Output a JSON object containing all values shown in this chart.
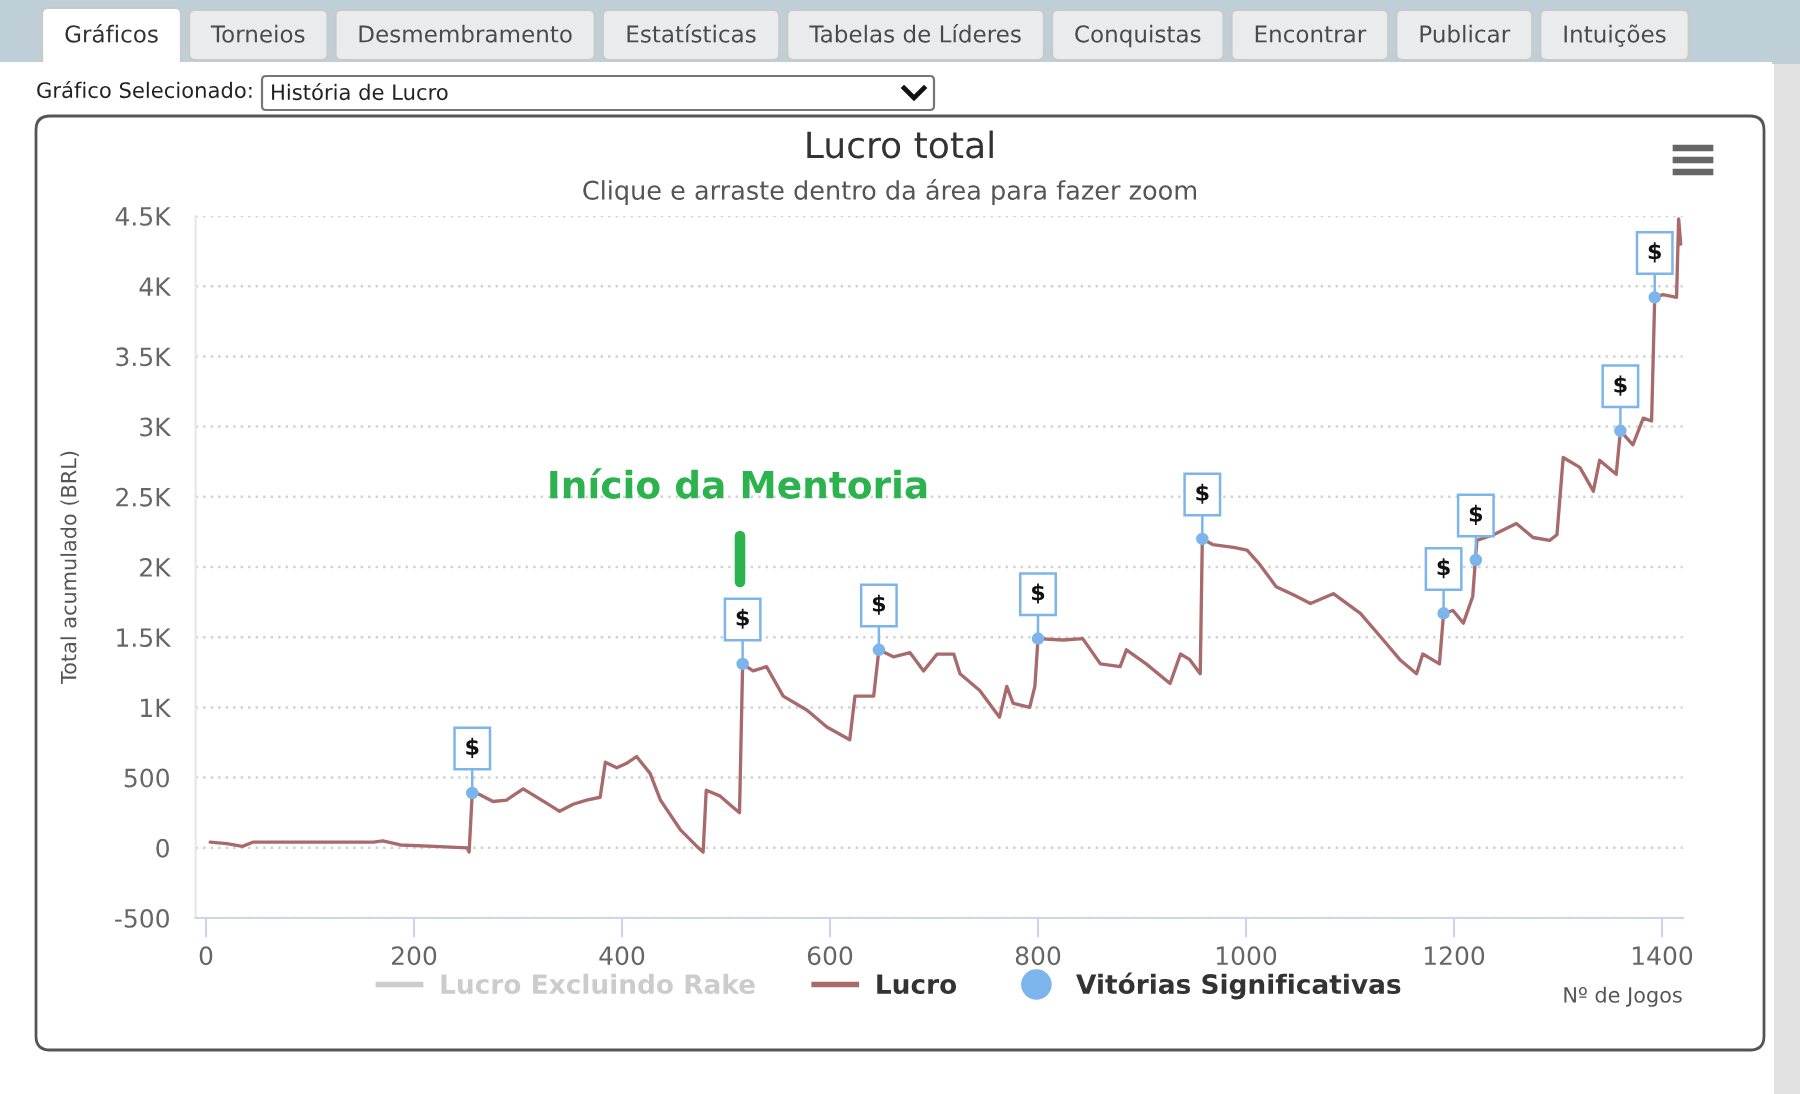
{
  "chart_data": {
    "type": "line",
    "title": "Lucro total",
    "subtitle": "Clique e arraste dentro da área para fazer zoom",
    "xlabel": "Nº de Jogos",
    "ylabel": "Total acumulado (BRL)",
    "xlim": [
      -10,
      1420
    ],
    "ylim": [
      -500,
      4500
    ],
    "xticks": [
      0,
      200,
      400,
      600,
      800,
      1000,
      1200,
      1400
    ],
    "yticks": [
      -500,
      0,
      500,
      {
        "value": 1000,
        "label": "1K"
      },
      {
        "value": 1500,
        "label": "1.5K"
      },
      {
        "value": 2000,
        "label": "2K"
      },
      {
        "value": 2500,
        "label": "2.5K"
      },
      {
        "value": 3000,
        "label": "3K"
      },
      {
        "value": 3500,
        "label": "3.5K"
      },
      {
        "value": 4000,
        "label": "4K"
      },
      {
        "value": 4500,
        "label": "4.5K"
      }
    ],
    "grid": "y",
    "legend": "bottom",
    "series": [
      {
        "name": "Lucro Excluindo Rake",
        "color": "#cccccc"
      },
      {
        "name": "Lucro",
        "color": "#a86a6a",
        "x": [
          4,
          20,
          35,
          45,
          100,
          161,
          170,
          187,
          220,
          251,
          253,
          256,
          263,
          276,
          289,
          305,
          327,
          340,
          353,
          366,
          379,
          384,
          395,
          404,
          414,
          427,
          437,
          456,
          472,
          478,
          481,
          494,
          505,
          513,
          516,
          526,
          539,
          555,
          578,
          597,
          619,
          624,
          642,
          647,
          661,
          677,
          690,
          703,
          719,
          725,
          744,
          763,
          770,
          776,
          792,
          797,
          800,
          824,
          843,
          860,
          879,
          885,
          904,
          927,
          937,
          946,
          956,
          958,
          968,
          988,
          1001,
          1013,
          1029,
          1046,
          1062,
          1084,
          1110,
          1132,
          1148,
          1164,
          1170,
          1186,
          1190,
          1199,
          1209,
          1218,
          1222,
          1238,
          1260,
          1276,
          1292,
          1299,
          1305,
          1321,
          1334,
          1340,
          1356,
          1360,
          1372,
          1382,
          1390,
          1393,
          1401,
          1414,
          1416,
          1418
        ],
        "values": [
          40,
          30,
          10,
          40,
          40,
          40,
          50,
          20,
          10,
          0,
          -30,
          390,
          380,
          330,
          340,
          420,
          320,
          260,
          310,
          340,
          360,
          610,
          570,
          600,
          650,
          530,
          340,
          130,
          10,
          -30,
          410,
          370,
          300,
          250,
          1310,
          1260,
          1290,
          1080,
          980,
          860,
          770,
          1080,
          1080,
          1410,
          1360,
          1390,
          1260,
          1380,
          1380,
          1240,
          1120,
          930,
          1150,
          1030,
          1000,
          1150,
          1490,
          1480,
          1490,
          1310,
          1290,
          1410,
          1310,
          1170,
          1380,
          1340,
          1240,
          2200,
          2160,
          2140,
          2120,
          2020,
          1860,
          1800,
          1740,
          1810,
          1670,
          1480,
          1340,
          1240,
          1380,
          1310,
          1670,
          1690,
          1600,
          1790,
          2190,
          2230,
          2310,
          2210,
          2190,
          2230,
          2780,
          2710,
          2540,
          2760,
          2660,
          2970,
          2870,
          3060,
          3040,
          3920,
          3940,
          3920,
          4480,
          4300
        ]
      },
      {
        "name": "Vitórias Significativas",
        "type": "scatter",
        "color": "#7cb5ec",
        "marker": "circle",
        "x": [
          256,
          516,
          647,
          800,
          958,
          1190,
          1221,
          1360,
          1393
        ],
        "values": [
          390,
          1310,
          1410,
          1490,
          2200,
          1670,
          2050,
          2970,
          3920
        ],
        "value_labels": [
          "$",
          "$",
          "$",
          "$",
          "$",
          "$",
          "$",
          "$",
          "$"
        ]
      }
    ],
    "annotations": [
      "Gráficos",
      "Torneios",
      "Desmembramento",
      "Estatísticas",
      "Tabelas de Líderes",
      "Conquistas",
      "Encontrar",
      "Publicar",
      "Intuições",
      "Gráfico Selecionado:",
      "História de Lucro",
      "Início da Mentoria"
    ]
  }
}
